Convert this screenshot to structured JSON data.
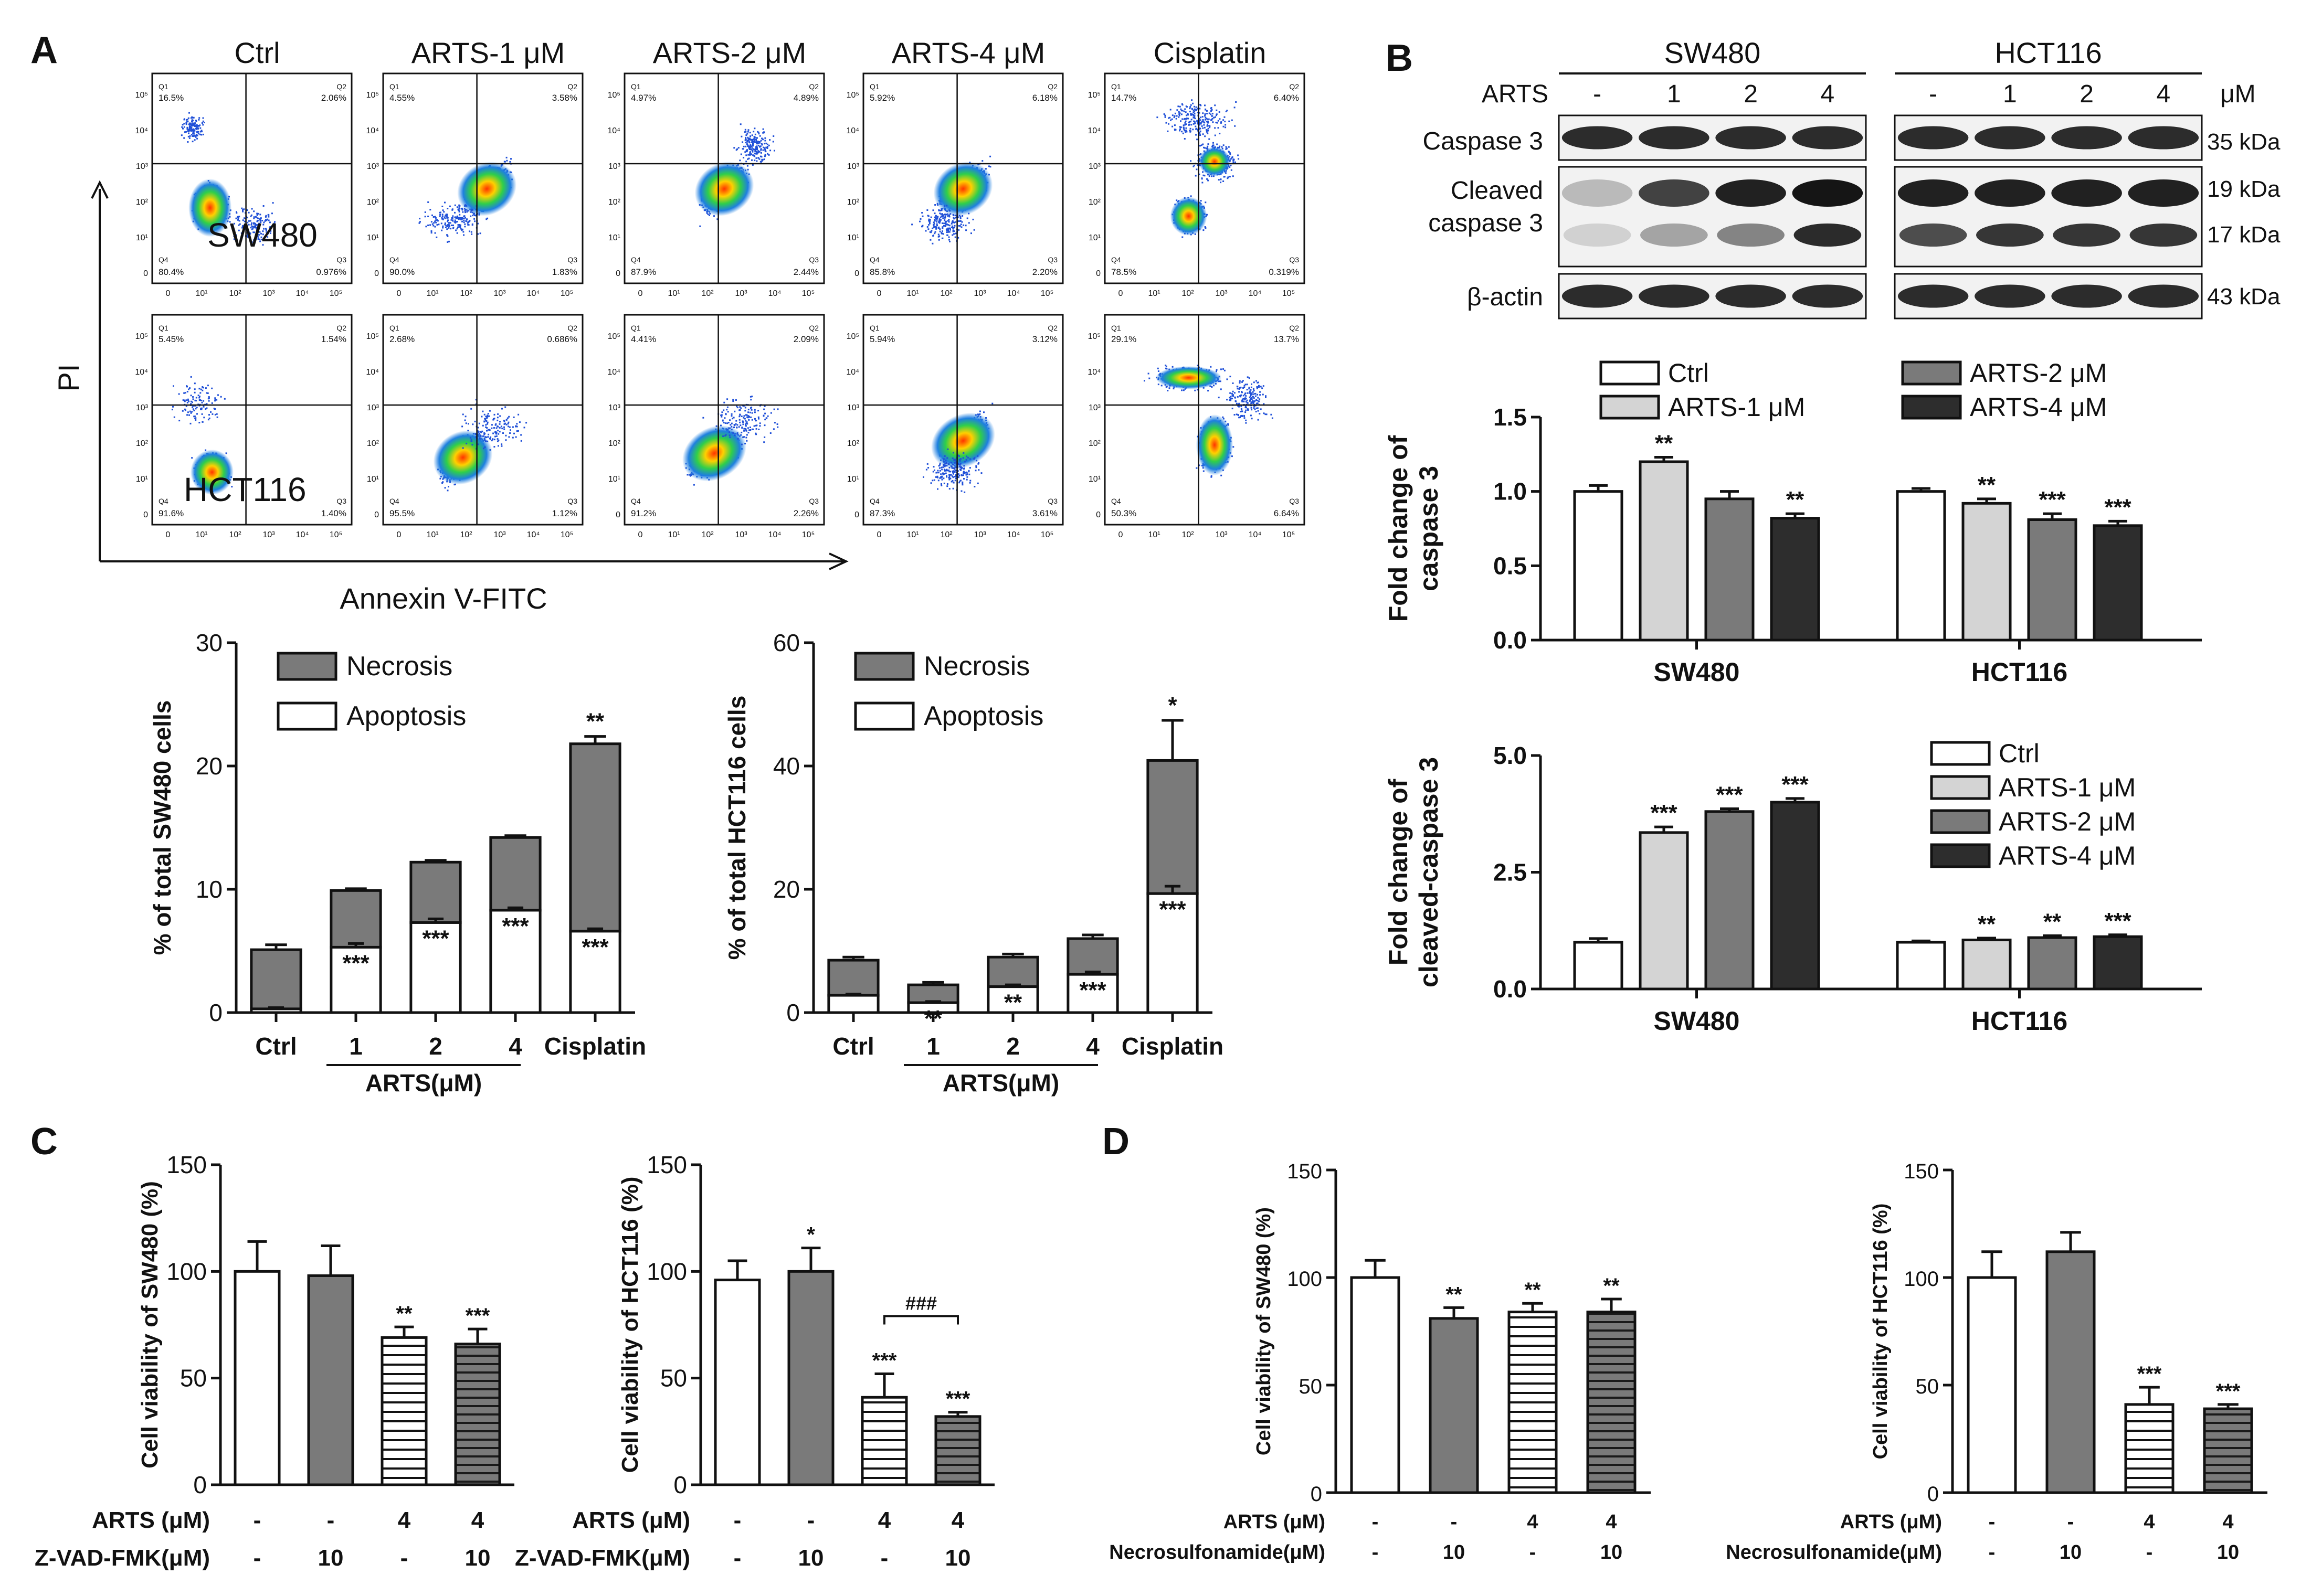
{
  "panel_letters": [
    "A",
    "B",
    "C",
    "D"
  ],
  "colors": {
    "ink": "#111111",
    "white": "#ffffff",
    "light": "#d4d4d4",
    "mid": "#7a7a7a",
    "dark": "#2d2d2d"
  },
  "flow": {
    "conditions": [
      "Ctrl",
      "ARTS-1 μM",
      "ARTS-2 μM",
      "ARTS-4 μM",
      "Cisplatin"
    ],
    "axis_y_label": "PI",
    "axis_x_label": "Annexin V-FITC",
    "tick_labels": [
      "0",
      "10¹",
      "10²",
      "10³",
      "10⁴",
      "10⁵"
    ],
    "rows": [
      {
        "cell_line": "SW480",
        "quadrants": [
          {
            "q1": "16.5%",
            "q2": "2.06%",
            "q3": "0.976%",
            "q4": "80.4%"
          },
          {
            "q1": "4.55%",
            "q2": "3.58%",
            "q3": "1.83%",
            "q4": "90.0%"
          },
          {
            "q1": "4.97%",
            "q2": "4.89%",
            "q3": "2.44%",
            "q4": "87.9%"
          },
          {
            "q1": "5.92%",
            "q2": "6.18%",
            "q3": "2.20%",
            "q4": "85.8%"
          },
          {
            "q1": "14.7%",
            "q2": "6.40%",
            "q3": "0.319%",
            "q4": "78.5%"
          }
        ]
      },
      {
        "cell_line": "HCT116",
        "quadrants": [
          {
            "q1": "5.45%",
            "q2": "1.54%",
            "q3": "1.40%",
            "q4": "91.6%"
          },
          {
            "q1": "2.68%",
            "q2": "0.686%",
            "q3": "1.12%",
            "q4": "95.5%"
          },
          {
            "q1": "4.41%",
            "q2": "2.09%",
            "q3": "2.26%",
            "q4": "91.2%"
          },
          {
            "q1": "5.94%",
            "q2": "3.12%",
            "q3": "3.61%",
            "q4": "87.3%"
          },
          {
            "q1": "29.1%",
            "q2": "13.7%",
            "q3": "6.64%",
            "q4": "50.3%"
          }
        ]
      }
    ]
  },
  "western": {
    "cell_lines": [
      "SW480",
      "HCT116"
    ],
    "row_label_arts": "ARTS",
    "lane_labels": [
      "-",
      "1",
      "2",
      "4"
    ],
    "unit": "μM",
    "proteins": [
      "Caspase 3",
      "Cleaved\ncaspase 3",
      "β-actin"
    ],
    "kda": [
      "35 kDa",
      "19 kDa",
      "17 kDa",
      "43 kDa"
    ]
  },
  "chart_data": [
    {
      "id": "A-sw480-stacked",
      "type": "bar",
      "categories": [
        "Ctrl",
        "1",
        "2",
        "4",
        "Cisplatin"
      ],
      "group_label": "ARTS(μM)",
      "ylabel": "% of total SW480 cells",
      "ylim": [
        0,
        30
      ],
      "yticks": [
        0,
        10,
        20,
        30
      ],
      "series": [
        {
          "name": "Apoptosis",
          "values": [
            0.3,
            5.3,
            7.3,
            8.3,
            6.6
          ],
          "errors": [
            0.1,
            0.3,
            0.3,
            0.2,
            0.2
          ],
          "labels": [
            "",
            "***",
            "***",
            "***",
            "***"
          ]
        },
        {
          "name": "Necrosis",
          "values": [
            4.8,
            4.6,
            4.9,
            5.9,
            15.2
          ],
          "errors": [
            0.4,
            0.15,
            0.15,
            0.15,
            0.6
          ],
          "labels": [
            "",
            "",
            "",
            "",
            "**"
          ]
        }
      ]
    },
    {
      "id": "A-hct116-stacked",
      "type": "bar",
      "categories": [
        "Ctrl",
        "1",
        "2",
        "4",
        "Cisplatin"
      ],
      "group_label": "ARTS(μM)",
      "ylabel": "% of total HCT116 cells",
      "ylim": [
        0,
        60
      ],
      "yticks": [
        0,
        20,
        40,
        60
      ],
      "series": [
        {
          "name": "Apoptosis",
          "values": [
            2.8,
            1.6,
            4.2,
            6.2,
            19.3
          ],
          "errors": [
            0.2,
            0.2,
            0.3,
            0.4,
            1.2
          ],
          "labels": [
            "",
            "**",
            "**",
            "***",
            "***"
          ]
        },
        {
          "name": "Necrosis",
          "values": [
            5.7,
            2.9,
            4.8,
            5.8,
            21.6
          ],
          "errors": [
            0.5,
            0.4,
            0.5,
            0.6,
            6.5
          ],
          "labels": [
            "",
            "",
            "",
            "",
            "*"
          ]
        }
      ]
    },
    {
      "id": "B-caspase3",
      "type": "bar",
      "categories": [
        "SW480",
        "HCT116"
      ],
      "ylabel": "Fold change of\ncaspase 3",
      "ylim": [
        0,
        1.5
      ],
      "yticks": [
        0.0,
        0.5,
        1.0,
        1.5
      ],
      "series": [
        {
          "name": "Ctrl",
          "values": [
            1.0,
            1.0
          ],
          "errors": [
            0.04,
            0.02
          ],
          "labels": [
            "",
            ""
          ]
        },
        {
          "name": "ARTS-1 μM",
          "values": [
            1.2,
            0.92
          ],
          "errors": [
            0.03,
            0.03
          ],
          "labels": [
            "**",
            "**"
          ]
        },
        {
          "name": "ARTS-2 μM",
          "values": [
            0.95,
            0.81
          ],
          "errors": [
            0.05,
            0.04
          ],
          "labels": [
            "",
            "***"
          ]
        },
        {
          "name": "ARTS-4 μM",
          "values": [
            0.82,
            0.77
          ],
          "errors": [
            0.03,
            0.03
          ],
          "labels": [
            "**",
            "***"
          ]
        }
      ]
    },
    {
      "id": "B-cleaved-caspase3",
      "type": "bar",
      "categories": [
        "SW480",
        "HCT116"
      ],
      "ylabel": "Fold change of\ncleaved-caspase 3",
      "ylim": [
        0,
        5.0
      ],
      "yticks": [
        0.0,
        2.5,
        5.0
      ],
      "series": [
        {
          "name": "Ctrl",
          "values": [
            1.0,
            1.0
          ],
          "errors": [
            0.08,
            0.03
          ],
          "labels": [
            "",
            ""
          ]
        },
        {
          "name": "ARTS-1 μM",
          "values": [
            3.35,
            1.05
          ],
          "errors": [
            0.12,
            0.04
          ],
          "labels": [
            "***",
            "**"
          ]
        },
        {
          "name": "ARTS-2 μM",
          "values": [
            3.8,
            1.1
          ],
          "errors": [
            0.06,
            0.04
          ],
          "labels": [
            "***",
            "**"
          ]
        },
        {
          "name": "ARTS-4 μM",
          "values": [
            4.0,
            1.12
          ],
          "errors": [
            0.08,
            0.04
          ],
          "labels": [
            "***",
            "***"
          ]
        }
      ]
    },
    {
      "id": "C-sw480",
      "type": "bar",
      "ylabel": "Cell viability of SW480 (%)",
      "ylim": [
        0,
        150
      ],
      "yticks": [
        0,
        50,
        100,
        150
      ],
      "rows": [
        {
          "label": "ARTS (μM)",
          "values": [
            "-",
            "-",
            "4",
            "4"
          ]
        },
        {
          "label": "Z-VAD-FMK(μM)",
          "values": [
            "-",
            "10",
            "-",
            "10"
          ]
        }
      ],
      "values": [
        100,
        98,
        69,
        66
      ],
      "errors": [
        14,
        14,
        5,
        7
      ],
      "labels": [
        "",
        "",
        "**",
        "***"
      ],
      "fills": [
        "white",
        "mid",
        "hlines",
        "dlines"
      ]
    },
    {
      "id": "C-hct116",
      "type": "bar",
      "ylabel": "Cell viability of HCT116 (%)",
      "ylim": [
        0,
        150
      ],
      "yticks": [
        0,
        50,
        100,
        150
      ],
      "rows": [
        {
          "label": "ARTS (μM)",
          "values": [
            "-",
            "-",
            "4",
            "4"
          ]
        },
        {
          "label": "Z-VAD-FMK(μM)",
          "values": [
            "-",
            "10",
            "-",
            "10"
          ]
        }
      ],
      "values": [
        96,
        100,
        41,
        32
      ],
      "errors": [
        9,
        11,
        11,
        2
      ],
      "labels": [
        "",
        "*",
        "***",
        "***"
      ],
      "fills": [
        "white",
        "mid",
        "hlines",
        "dlines"
      ],
      "bracket": {
        "from": 2,
        "to": 3,
        "label": "###"
      }
    },
    {
      "id": "D-sw480",
      "type": "bar",
      "ylabel": "Cell viability of SW480 (%)",
      "ylim": [
        0,
        150
      ],
      "yticks": [
        0,
        50,
        100,
        150
      ],
      "rows": [
        {
          "label": "ARTS (μM)",
          "values": [
            "-",
            "-",
            "4",
            "4"
          ]
        },
        {
          "label": "Necrosulfonamide(μM)",
          "values": [
            "-",
            "10",
            "-",
            "10"
          ]
        }
      ],
      "values": [
        100,
        81,
        84,
        84
      ],
      "errors": [
        8,
        5,
        4,
        6
      ],
      "labels": [
        "",
        "**",
        "**",
        "**"
      ],
      "fills": [
        "white",
        "mid",
        "hlines",
        "dlines"
      ]
    },
    {
      "id": "D-hct116",
      "type": "bar",
      "ylabel": "Cell viability of HCT116 (%)",
      "ylim": [
        0,
        150
      ],
      "yticks": [
        0,
        50,
        100,
        150
      ],
      "rows": [
        {
          "label": "ARTS (μM)",
          "values": [
            "-",
            "-",
            "4",
            "4"
          ]
        },
        {
          "label": "Necrosulfonamide(μM)",
          "values": [
            "-",
            "10",
            "-",
            "10"
          ]
        }
      ],
      "values": [
        100,
        112,
        41,
        39
      ],
      "errors": [
        12,
        9,
        8,
        2
      ],
      "labels": [
        "",
        "",
        "***",
        "***"
      ],
      "fills": [
        "white",
        "mid",
        "hlines",
        "dlines"
      ]
    }
  ]
}
